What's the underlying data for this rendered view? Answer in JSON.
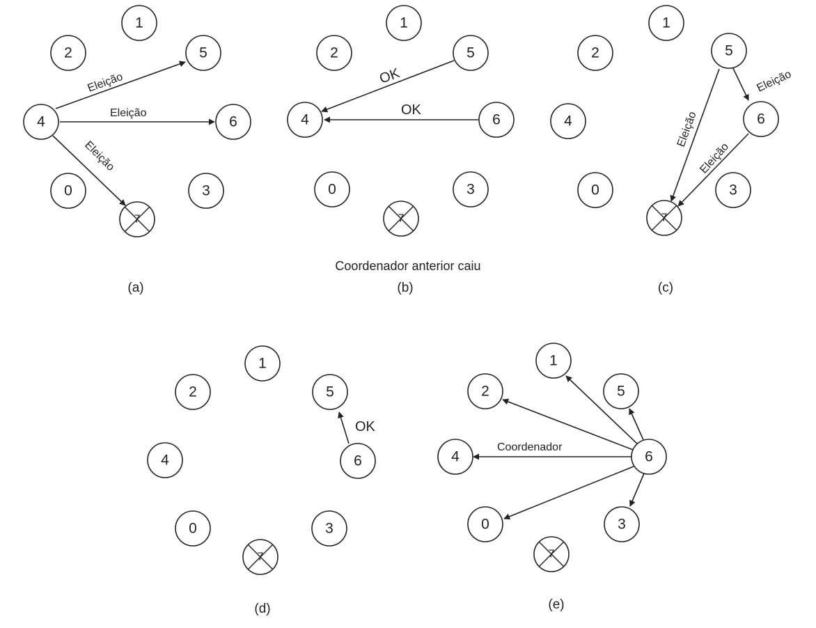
{
  "labels": {
    "election": "Eleição",
    "ok": "OK",
    "coordinator": "Coordenador",
    "crashed_note": "Coordenador anterior caiu"
  },
  "panels": [
    {
      "caption": "(a)",
      "nodes": [
        "1",
        "2",
        "5",
        "4",
        "6",
        "0",
        "3",
        "7"
      ],
      "crashed": "7",
      "messages": [
        {
          "from": "4",
          "to": "5",
          "label": "Eleição"
        },
        {
          "from": "4",
          "to": "6",
          "label": "Eleição"
        },
        {
          "from": "4",
          "to": "7",
          "label": "Eleição"
        }
      ]
    },
    {
      "caption": "(b)",
      "note": "Coordenador anterior caiu",
      "nodes": [
        "1",
        "2",
        "5",
        "4",
        "6",
        "0",
        "3",
        "7"
      ],
      "crashed": "7",
      "messages": [
        {
          "from": "5",
          "to": "4",
          "label": "OK"
        },
        {
          "from": "6",
          "to": "4",
          "label": "OK"
        }
      ]
    },
    {
      "caption": "(c)",
      "nodes": [
        "1",
        "2",
        "5",
        "4",
        "6",
        "0",
        "3",
        "7"
      ],
      "crashed": "7",
      "messages": [
        {
          "from": "5",
          "to": "6",
          "label": "Eleição"
        },
        {
          "from": "5",
          "to": "7",
          "label": "Eleição"
        },
        {
          "from": "6",
          "to": "7",
          "label": "Eleição"
        }
      ]
    },
    {
      "caption": "(d)",
      "nodes": [
        "1",
        "2",
        "5",
        "4",
        "6",
        "0",
        "3",
        "7"
      ],
      "crashed": "7",
      "messages": [
        {
          "from": "6",
          "to": "5",
          "label": "OK"
        }
      ]
    },
    {
      "caption": "(e)",
      "nodes": [
        "1",
        "2",
        "5",
        "4",
        "6",
        "0",
        "3",
        "7"
      ],
      "crashed": "7",
      "messages": [
        {
          "from": "6",
          "to": "1",
          "label": ""
        },
        {
          "from": "6",
          "to": "2",
          "label": ""
        },
        {
          "from": "6",
          "to": "5",
          "label": ""
        },
        {
          "from": "6",
          "to": "4",
          "label": "Coordenador"
        },
        {
          "from": "6",
          "to": "0",
          "label": ""
        },
        {
          "from": "6",
          "to": "3",
          "label": ""
        }
      ]
    }
  ]
}
